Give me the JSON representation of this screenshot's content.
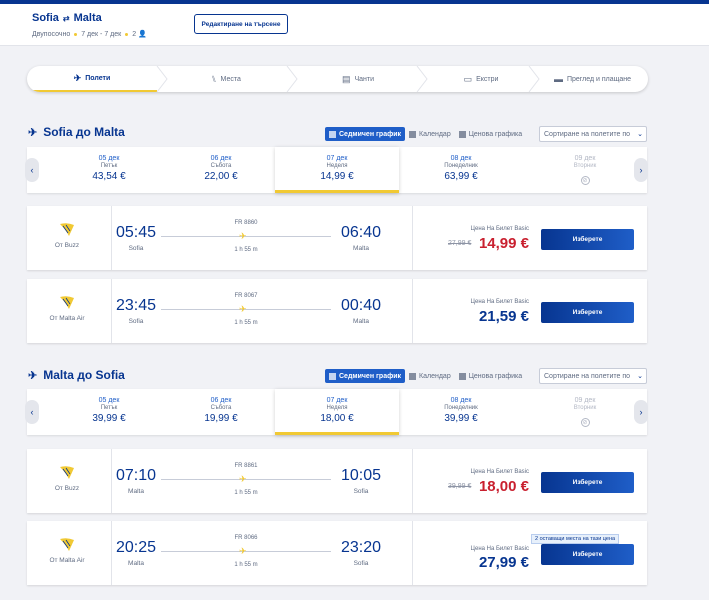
{
  "header": {
    "origin": "Sofia",
    "destination": "Malta",
    "trip_type": "Двупосочно",
    "dates": "7 дек - 7 дек",
    "passengers": "2",
    "edit_button": "Редактиране на търсене"
  },
  "steps": [
    {
      "label": "Полети",
      "icon": "plane-icon"
    },
    {
      "label": "Места",
      "icon": "seat-icon"
    },
    {
      "label": "Чанти",
      "icon": "bag-icon"
    },
    {
      "label": "Екстри",
      "icon": "bus-icon"
    },
    {
      "label": "Преглед и плащане",
      "icon": "card-icon"
    }
  ],
  "view": {
    "weekly": "Седмичен график",
    "calendar": "Календар",
    "price_chart": "Ценова графика",
    "sort_placeholder": "Сортиране на полетите по"
  },
  "outbound": {
    "title": "Sofia до Malta",
    "dates": [
      {
        "date": "05 дек",
        "day": "Петък",
        "price": "43,54 €"
      },
      {
        "date": "06 дек",
        "day": "Събота",
        "price": "22,00 €"
      },
      {
        "date": "07 дек",
        "day": "Неделя",
        "price": "14,99 €"
      },
      {
        "date": "08 дек",
        "day": "Понеделник",
        "price": "63,99 €"
      },
      {
        "date": "09 дек",
        "day": "Вторник",
        "price": ""
      }
    ],
    "flights": [
      {
        "operator": "От Buzz",
        "dep_time": "05:45",
        "dep_city": "Sofia",
        "arr_time": "06:40",
        "arr_city": "Malta",
        "flight_no": "FR 8860",
        "duration": "1 h 55 m",
        "price_label": "Цена На Билет Basic",
        "old_price": "27,99 €",
        "price": "14,99 €"
      },
      {
        "operator": "От Malta Air",
        "dep_time": "23:45",
        "dep_city": "Sofia",
        "arr_time": "00:40",
        "arr_city": "Malta",
        "flight_no": "FR 8067",
        "duration": "1 h 55 m",
        "price_label": "Цена На Билет Basic",
        "price": "21,59 €"
      }
    ]
  },
  "inbound": {
    "title": "Malta до Sofia",
    "dates": [
      {
        "date": "05 дек",
        "day": "Петък",
        "price": "39,99 €"
      },
      {
        "date": "06 дек",
        "day": "Събота",
        "price": "19,99 €"
      },
      {
        "date": "07 дек",
        "day": "Неделя",
        "price": "18,00 €"
      },
      {
        "date": "08 дек",
        "day": "Понеделник",
        "price": "39,99 €"
      },
      {
        "date": "09 дек",
        "day": "Вторник",
        "price": ""
      }
    ],
    "flights": [
      {
        "operator": "От Buzz",
        "dep_time": "07:10",
        "dep_city": "Malta",
        "arr_time": "10:05",
        "arr_city": "Sofia",
        "flight_no": "FR 8861",
        "duration": "1 h 55 m",
        "price_label": "Цена На Билет Basic",
        "old_price": "39,99 €",
        "price": "18,00 €"
      },
      {
        "operator": "От Malta Air",
        "dep_time": "20:25",
        "dep_city": "Malta",
        "arr_time": "23:20",
        "arr_city": "Sofia",
        "flight_no": "FR 8066",
        "duration": "1 h 55 m",
        "price_label": "Цена На Билет Basic",
        "seats_left": "2 оставащи места на тази цена",
        "price": "27,99 €"
      }
    ]
  },
  "choose_label": "Изберете",
  "colors": {
    "brand": "#073590",
    "accent": "#f1c933",
    "sale": "#c9202f",
    "button": "#1f5ec8"
  }
}
